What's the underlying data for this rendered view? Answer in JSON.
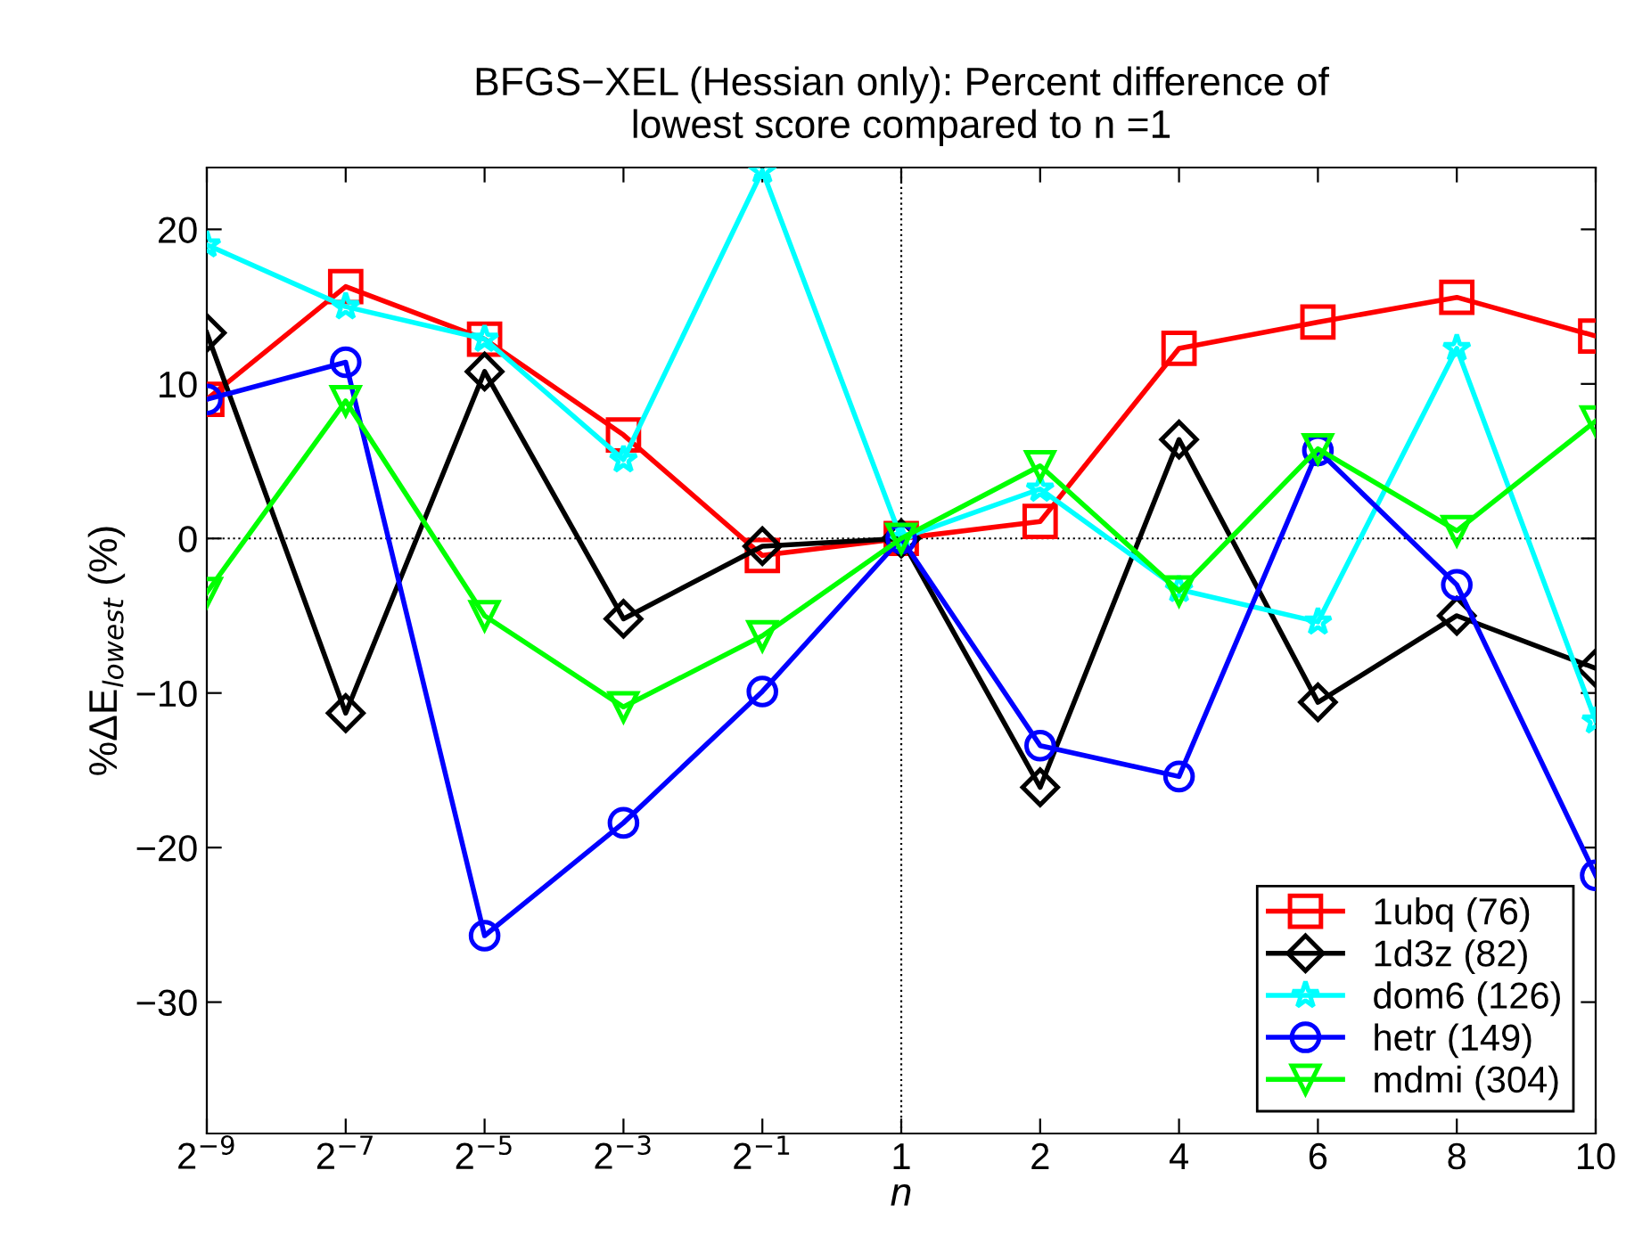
{
  "chart_data": {
    "type": "line",
    "title": "BFGS−XEL (Hessian only): Percent difference of\nlowest score compared to n =1",
    "xlabel": "n",
    "ylabel": "%ΔE$_{lowest}$ (%)",
    "categories": [
      "2$^{−9}$",
      "2$^{−7}$",
      "2$^{−5}$",
      "2$^{−3}$",
      "2$^{−1}$",
      "1",
      "2",
      "4",
      "6",
      "8",
      "10"
    ],
    "series": [
      {
        "name": "1ubq (76)",
        "color": "#ff0000",
        "marker": "square",
        "values": [
          9.0,
          16.3,
          12.9,
          6.7,
          -1.1,
          0,
          1.1,
          12.3,
          14.0,
          15.6,
          13.1
        ]
      },
      {
        "name": "1d3z (82)",
        "color": "#000000",
        "marker": "diamond",
        "values": [
          13.3,
          -11.3,
          10.8,
          -5.2,
          -0.5,
          0,
          -16.1,
          6.4,
          -10.6,
          -5.0,
          -8.4
        ]
      },
      {
        "name": "dom6 (126)",
        "color": "#00ffff",
        "marker": "star",
        "values": [
          19.0,
          15.0,
          12.9,
          5.1,
          23.8,
          0,
          3.2,
          -3.3,
          -5.4,
          12.3,
          -11.8
        ]
      },
      {
        "name": "hetr (149)",
        "color": "#0000ff",
        "marker": "circle",
        "values": [
          9.0,
          11.4,
          -25.7,
          -18.4,
          -9.9,
          0,
          -13.4,
          -15.4,
          5.7,
          -3.0,
          -21.8
        ]
      },
      {
        "name": "mdmi (304)",
        "color": "#00ff00",
        "marker": "triangle",
        "values": [
          -3.5,
          8.9,
          -5.0,
          -10.9,
          -6.3,
          0,
          4.7,
          -3.4,
          5.8,
          0.5,
          7.6
        ]
      }
    ],
    "ylim": [
      -38.5,
      24
    ],
    "yticks": [
      {
        "value": -30,
        "label": "−30"
      },
      {
        "value": -20,
        "label": "−20"
      },
      {
        "value": -10,
        "label": "−10"
      },
      0,
      10,
      20
    ],
    "ref_lines": [
      {
        "axis": "y",
        "value": 0,
        "color": "#000000",
        "line_style": "dotted"
      },
      {
        "axis": "x",
        "value": "1",
        "color": "#000000",
        "line_style": "dotted"
      }
    ],
    "grid": false,
    "legend": "bottom right",
    "line_style": "solid"
  }
}
